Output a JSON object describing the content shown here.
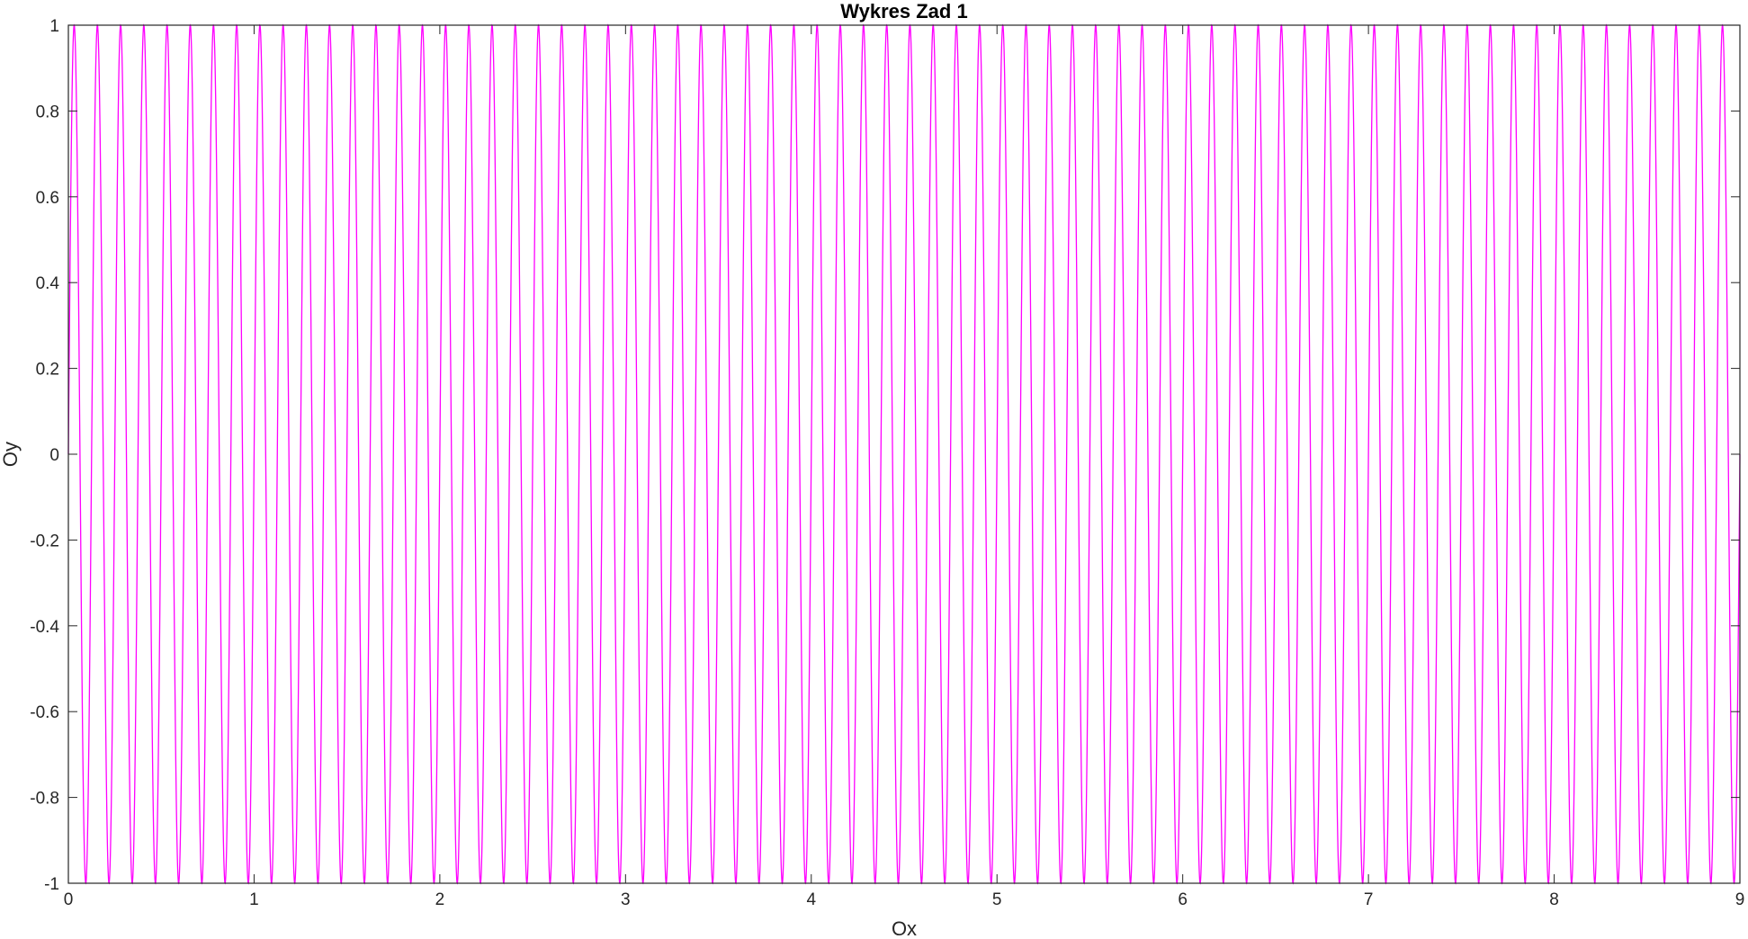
{
  "chart_data": {
    "type": "line",
    "title": "Wykres Zad 1",
    "xlabel": "Ox",
    "ylabel": "Oy",
    "xlim": [
      0,
      9
    ],
    "ylim": [
      -1,
      1
    ],
    "xticks": [
      0,
      1,
      2,
      3,
      4,
      5,
      6,
      7,
      8,
      9
    ],
    "yticks": [
      -1,
      -0.8,
      -0.6,
      -0.4,
      -0.2,
      0,
      0.2,
      0.4,
      0.6,
      0.8,
      1
    ],
    "xtick_labels": [
      "0",
      "1",
      "2",
      "3",
      "4",
      "5",
      "6",
      "7",
      "8",
      "9"
    ],
    "ytick_labels": [
      "-1",
      "-0.8",
      "-0.6",
      "-0.4",
      "-0.2",
      "0",
      "0.2",
      "0.4",
      "0.6",
      "0.8",
      "1"
    ],
    "grid": false,
    "box": true,
    "series": [
      {
        "function": "sin(2*pi*f*x)",
        "frequency": 8,
        "x_start": 0,
        "x_end": 9,
        "color": "#ff00ff"
      }
    ]
  }
}
